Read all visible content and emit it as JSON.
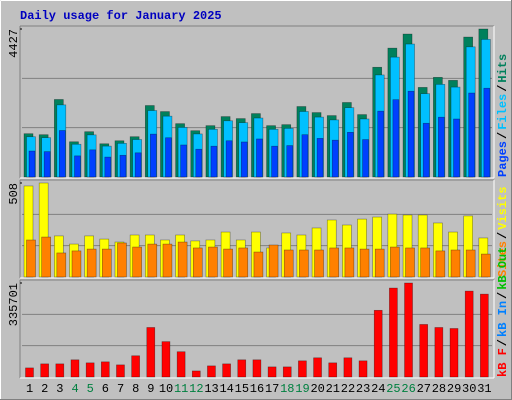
{
  "legend_separator": "/",
  "chart_data": [
    {
      "type": "bar",
      "title": "Daily usage for January 2025",
      "ylim": [
        0,
        4427
      ],
      "yticks": [
        4427
      ],
      "series": [
        {
          "name": "Hits",
          "color": "#00805c",
          "values": [
            1295,
            1265,
            2319,
            1054,
            1355,
            994,
            1084,
            1205,
            2138,
            1957,
            1596,
            1385,
            1536,
            1807,
            1747,
            1897,
            1536,
            1566,
            2108,
            1927,
            1837,
            2229,
            1867,
            3283,
            3855,
            4276,
            2680,
            2981,
            2891,
            4186,
            4427
          ]
        },
        {
          "name": "Files",
          "color": "#00c0ff",
          "values": [
            1204,
            1176,
            2157,
            980,
            1260,
            924,
            1008,
            1121,
            1988,
            1820,
            1484,
            1288,
            1428,
            1681,
            1625,
            1764,
            1428,
            1456,
            1960,
            1792,
            1708,
            2073,
            1736,
            3053,
            3585,
            3977,
            2492,
            2772,
            2689,
            3893,
            4117
          ]
        },
        {
          "name": "Pages",
          "color": "#0040ff",
          "values": [
            777,
            759,
            1391,
            632,
            813,
            596,
            650,
            723,
            1283,
            1174,
            958,
            831,
            922,
            1084,
            1048,
            1138,
            922,
            940,
            1265,
            1156,
            1102,
            1337,
            1120,
            1970,
            2313,
            2566,
            1608,
            1789,
            1735,
            2512,
            2656
          ]
        }
      ]
    },
    {
      "type": "bar",
      "ylim": [
        0,
        508
      ],
      "yticks": [
        508
      ],
      "series": [
        {
          "name": "Visits",
          "color": "#ffff00",
          "values": [
            492,
            508,
            222,
            178,
            222,
            205,
            189,
            227,
            227,
            200,
            227,
            195,
            200,
            243,
            200,
            243,
            157,
            238,
            227,
            265,
            308,
            281,
            313,
            324,
            340,
            335,
            335,
            292,
            243,
            330,
            211
          ]
        },
        {
          "name": "Sites",
          "color": "#ff8000",
          "values": [
            200,
            216,
            130,
            141,
            151,
            151,
            184,
            162,
            178,
            178,
            189,
            157,
            162,
            151,
            157,
            135,
            173,
            146,
            146,
            146,
            157,
            157,
            151,
            151,
            162,
            157,
            157,
            141,
            146,
            146,
            124
          ]
        }
      ]
    },
    {
      "type": "bar",
      "ylim": [
        0,
        335701
      ],
      "yticks": [
        335701
      ],
      "categories": [
        "1",
        "2",
        "3",
        "4",
        "5",
        "6",
        "7",
        "8",
        "9",
        "10",
        "11",
        "12",
        "13",
        "14",
        "15",
        "16",
        "17",
        "18",
        "19",
        "20",
        "21",
        "22",
        "23",
        "24",
        "25",
        "26",
        "27",
        "28",
        "29",
        "30",
        "31"
      ],
      "category_colors": [
        "#000000",
        "#000000",
        "#000000",
        "#008040",
        "#008040",
        "#000000",
        "#000000",
        "#000000",
        "#000000",
        "#000000",
        "#008040",
        "#008040",
        "#000000",
        "#000000",
        "#000000",
        "#000000",
        "#000000",
        "#008040",
        "#008040",
        "#000000",
        "#000000",
        "#000000",
        "#000000",
        "#000000",
        "#008040",
        "#008040",
        "#000000",
        "#000000",
        "#000000",
        "#000000",
        "#000000"
      ],
      "series": [
        {
          "name": "kB F",
          "color": "#ff0000",
          "values": [
            32487,
            46926,
            46926,
            61365,
            50536,
            54146,
            43316,
            75804,
            176875,
            126340,
            90243,
            21658,
            39707,
            46926,
            61365,
            61365,
            36097,
            36097,
            57755,
            68584,
            50536,
            68584,
            57755,
            238240,
            317654,
            335701,
            187704,
            176875,
            173266,
            306825,
            295995
          ]
        }
      ],
      "legend_extra": [
        {
          "name": "kB In",
          "color": "#0080ff"
        },
        {
          "name": "kB Out",
          "color": "#00c000"
        }
      ]
    }
  ]
}
